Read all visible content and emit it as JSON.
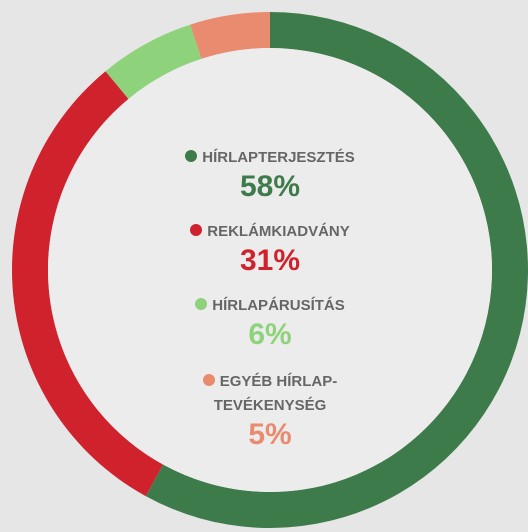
{
  "chart_data": {
    "type": "donut",
    "categories": [
      "HÍRLAPTERJESZTÉS",
      "REKLÁMKIADVÁNY",
      "HÍRLAPÁRUSÍTÁS",
      "EGYÉB HÍRLAP-TEVÉKENYSÉG"
    ],
    "values": [
      58,
      31,
      6,
      5
    ],
    "value_labels": [
      "58%",
      "31%",
      "6%",
      "5%"
    ],
    "colors": [
      "#3e7b4b",
      "#d0222d",
      "#8fd27c",
      "#e98b6e"
    ]
  }
}
